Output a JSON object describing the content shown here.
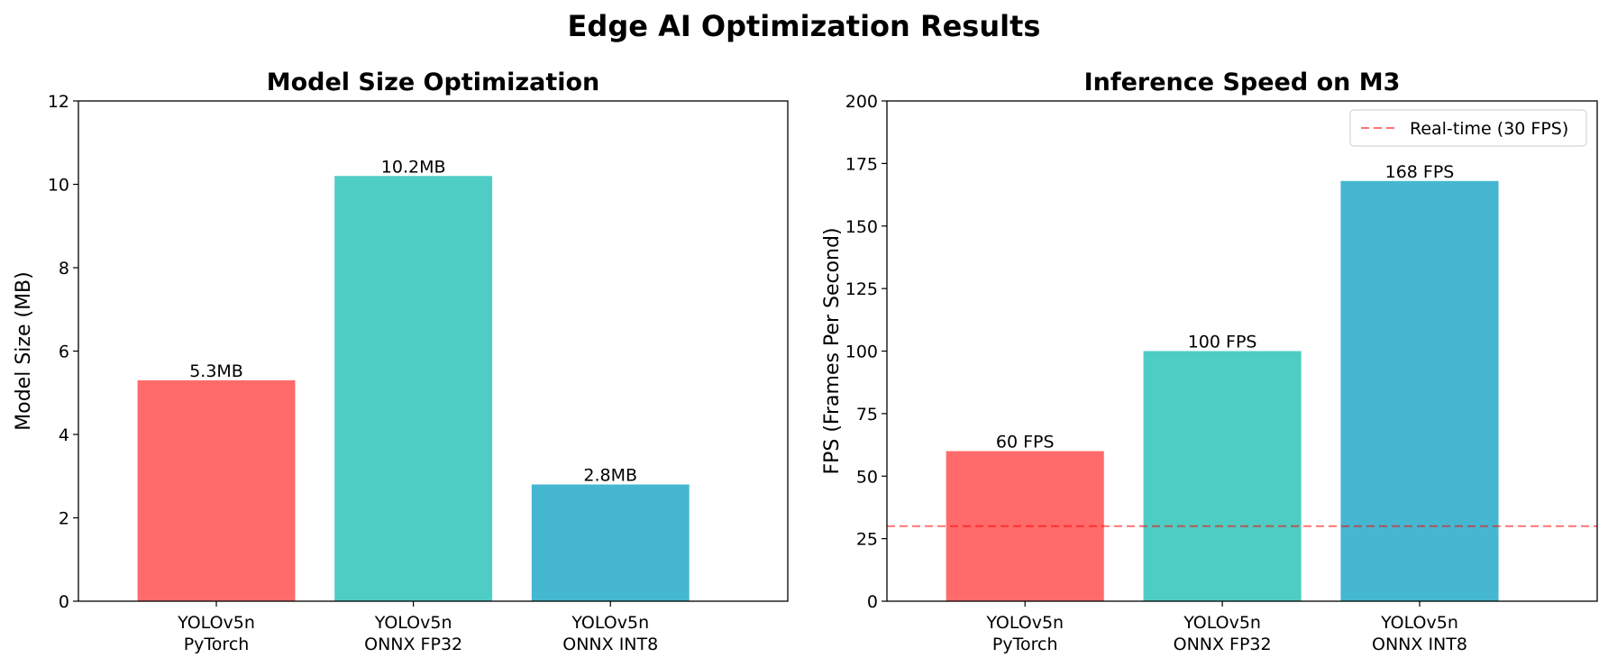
{
  "title": "Edge AI Optimization Results",
  "chart_data": [
    {
      "type": "bar",
      "title": "Model Size Optimization",
      "xlabel": "",
      "ylabel": "Model Size (MB)",
      "categories": [
        "YOLOv5n\nPyTorch",
        "YOLOv5n\nONNX FP32",
        "YOLOv5n\nONNX INT8"
      ],
      "values": [
        5.3,
        10.2,
        2.8
      ],
      "value_labels": [
        "5.3MB",
        "10.2MB",
        "2.8MB"
      ],
      "colors": [
        "#ff6b6b",
        "#4ecdc4",
        "#45b7d1"
      ],
      "ylim": [
        0,
        12
      ],
      "yticks": [
        0,
        2,
        4,
        6,
        8,
        10,
        12
      ],
      "grid": false
    },
    {
      "type": "bar",
      "title": "Inference Speed on M3",
      "xlabel": "",
      "ylabel": "FPS (Frames Per Second)",
      "categories": [
        "YOLOv5n\nPyTorch",
        "YOLOv5n\nONNX FP32",
        "YOLOv5n\nONNX INT8"
      ],
      "values": [
        60,
        100,
        168
      ],
      "value_labels": [
        "60 FPS",
        "100 FPS",
        "168 FPS"
      ],
      "colors": [
        "#ff6b6b",
        "#4ecdc4",
        "#45b7d1"
      ],
      "ylim": [
        0,
        200
      ],
      "yticks": [
        0,
        25,
        50,
        75,
        100,
        125,
        150,
        175,
        200
      ],
      "grid": false,
      "reference_line": {
        "y": 30,
        "label": "Real-time (30 FPS)",
        "color": "#ff0000",
        "style": "dashed"
      },
      "legend": {
        "position": "top-right",
        "entries": [
          "Real-time (30 FPS)"
        ]
      }
    }
  ]
}
